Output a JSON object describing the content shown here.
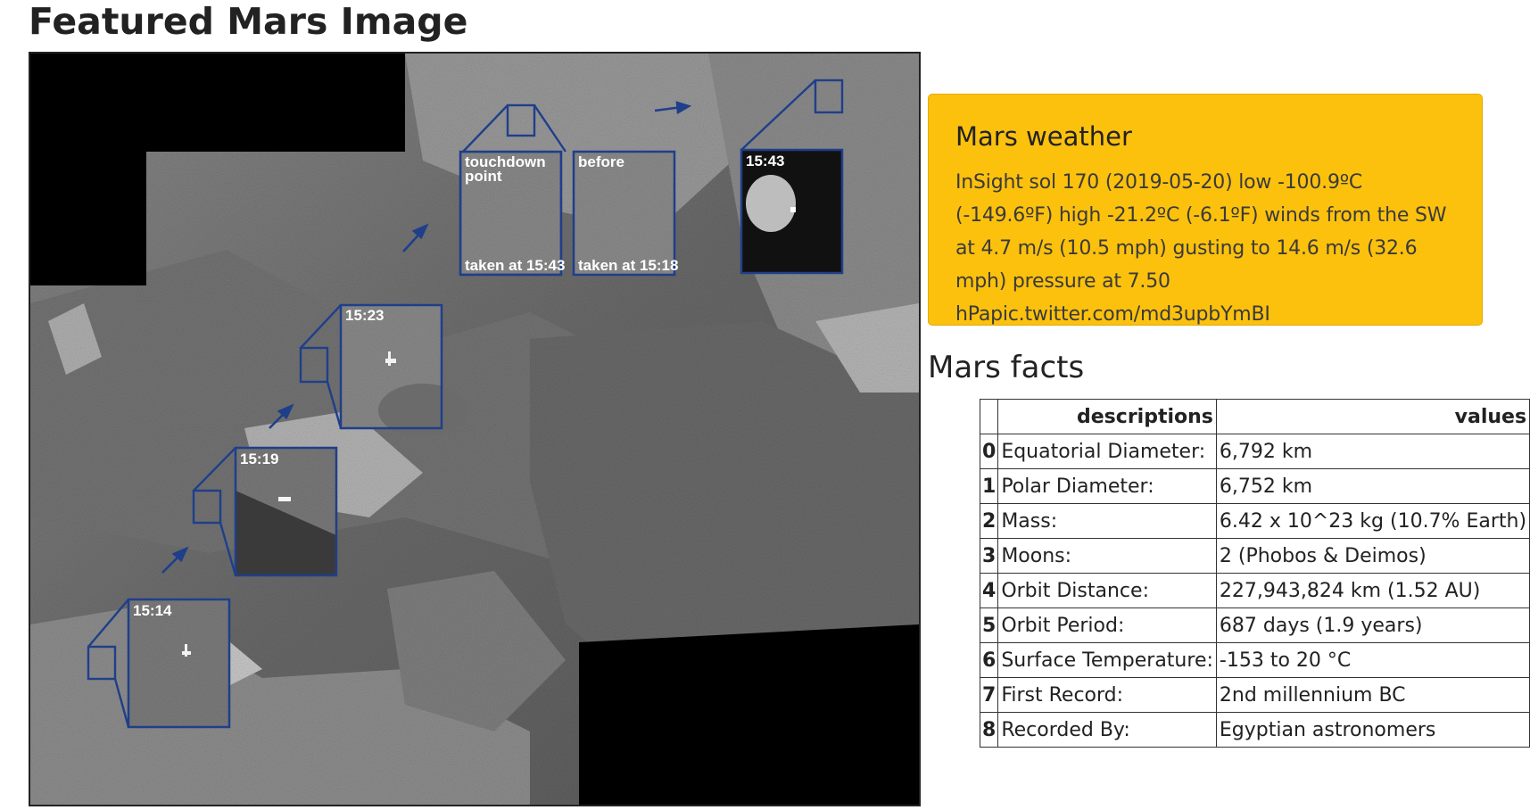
{
  "page": {
    "title": "Featured Mars Image"
  },
  "featured_image": {
    "alt": "Comet surface mosaic with touchdown point insets",
    "insets": {
      "touchdown": {
        "label_line1": "touchdown",
        "label_line2": "point",
        "caption": "taken at 15:43"
      },
      "before": {
        "label": "before",
        "caption": "taken at 15:18"
      },
      "t1543": "15:43",
      "t1523": "15:23",
      "t1519": "15:19",
      "t1514": "15:14"
    }
  },
  "weather": {
    "title": "Mars weather",
    "text": "InSight sol 170 (2019-05-20) low -100.9ºC (-149.6ºF) high -21.2ºC (-6.1ºF) winds from the SW at 4.7 m/s (10.5 mph) gusting to 14.6 m/s (32.6 mph) pressure at 7.50 hPapic.twitter.com/md3upbYmBI"
  },
  "facts": {
    "title": "Mars facts",
    "headers": [
      "",
      "descriptions",
      "values"
    ],
    "rows": [
      {
        "index": "0",
        "description": "Equatorial Diameter:",
        "value": "6,792 km"
      },
      {
        "index": "1",
        "description": "Polar Diameter:",
        "value": "6,752 km"
      },
      {
        "index": "2",
        "description": "Mass:",
        "value": "6.42 x 10^23 kg (10.7% Earth)"
      },
      {
        "index": "3",
        "description": "Moons:",
        "value": "2 (Phobos & Deimos)"
      },
      {
        "index": "4",
        "description": "Orbit Distance:",
        "value": "227,943,824 km (1.52 AU)"
      },
      {
        "index": "5",
        "description": "Orbit Period:",
        "value": "687 days (1.9 years)"
      },
      {
        "index": "6",
        "description": "Surface Temperature:",
        "value": "-153 to 20 °C"
      },
      {
        "index": "7",
        "description": "First Record:",
        "value": "2nd millennium BC"
      },
      {
        "index": "8",
        "description": "Recorded By:",
        "value": "Egyptian astronomers"
      }
    ]
  },
  "colors": {
    "weather_bg": "#fcc10d",
    "inset_border": "#1f3f8a"
  }
}
